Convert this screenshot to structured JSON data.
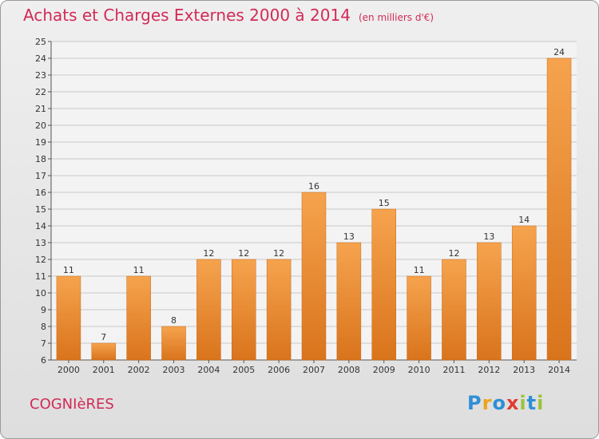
{
  "title": "Achats et Charges Externes 2000 à 2014",
  "title_unit": "(en milliers d'€)",
  "commune": "COGNIèRES",
  "logo": {
    "letters": [
      {
        "ch": "P",
        "color": "#2e8fd6"
      },
      {
        "ch": "r",
        "color": "#f0a21b"
      },
      {
        "ch": "o",
        "color": "#2e8fd6"
      },
      {
        "ch": "x",
        "color": "#e03c31"
      },
      {
        "ch": "i",
        "color": "#9ac43a"
      },
      {
        "ch": "t",
        "color": "#2e8fd6"
      },
      {
        "ch": "i",
        "color": "#9ac43a"
      }
    ]
  },
  "colors": {
    "bar_light": "#f6a34e",
    "bar_dark": "#d9741c",
    "title": "#d22a57"
  },
  "chart_data": {
    "type": "bar",
    "categories": [
      "2000",
      "2001",
      "2002",
      "2003",
      "2004",
      "2005",
      "2006",
      "2007",
      "2008",
      "2009",
      "2010",
      "2011",
      "2012",
      "2013",
      "2014"
    ],
    "values": [
      11,
      7,
      11,
      8,
      12,
      12,
      12,
      16,
      13,
      15,
      11,
      12,
      13,
      14,
      24
    ],
    "data_labels": [
      "11",
      "7",
      "11",
      "8",
      "12",
      "12",
      "12",
      "16",
      "13",
      "15",
      "11",
      "12",
      "13",
      "14",
      "24"
    ],
    "y_ticks": [
      "6",
      "7",
      "8",
      "9",
      "10",
      "11",
      "12",
      "13",
      "14",
      "15",
      "16",
      "17",
      "18",
      "19",
      "20",
      "21",
      "22",
      "23",
      "24",
      "25"
    ],
    "ylim": [
      6,
      25
    ],
    "grid": true
  }
}
